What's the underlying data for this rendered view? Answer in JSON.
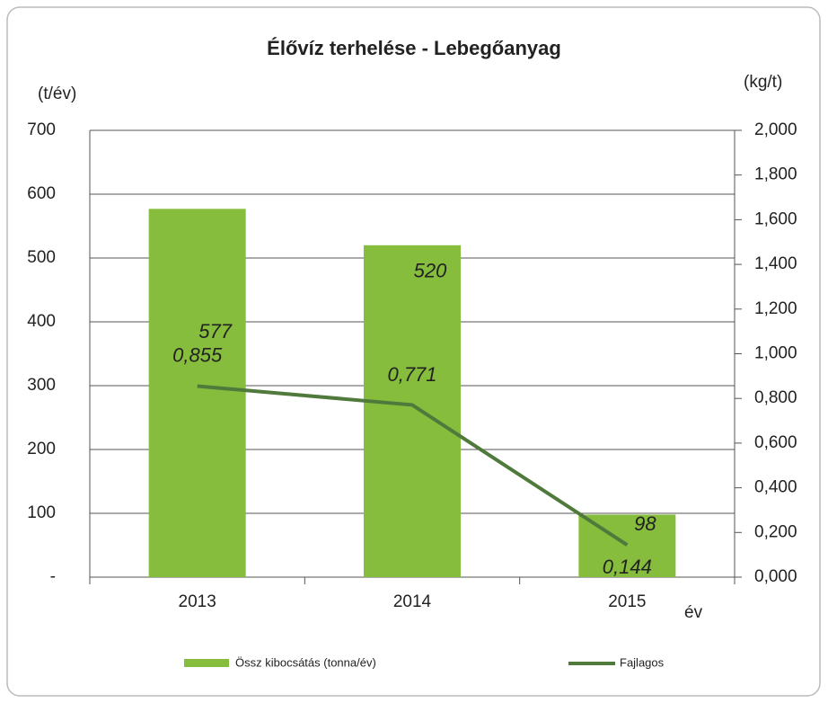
{
  "chart_data": {
    "type": "bar_line",
    "title": "Élővíz terhelése - Lebegőanyag",
    "y_label": "(t/év)",
    "y2_label": "(kg/t)",
    "x_label": "év",
    "categories": [
      "2013",
      "2014",
      "2015"
    ],
    "series": [
      {
        "name": "Össz kibocsátás (tonna/év)",
        "type": "bar",
        "color": "#86bd3c",
        "values": [
          577,
          520,
          98
        ]
      },
      {
        "name": "Fajlagos",
        "type": "line",
        "axis": "y2",
        "color": "#4f7a3c",
        "values": [
          0.855,
          0.771,
          0.144
        ],
        "value_labels": [
          "0,855",
          "0,771",
          "0,144"
        ]
      }
    ],
    "ylim": [
      0,
      700
    ],
    "yticks": [
      {
        "value": 0,
        "label": "-"
      },
      100,
      200,
      300,
      400,
      500,
      600,
      700
    ],
    "y2lim": [
      0,
      2
    ],
    "y2ticks": [
      {
        "value": 0,
        "label": "0,000"
      },
      {
        "value": 0.2,
        "label": "0,200"
      },
      {
        "value": 0.4,
        "label": "0,400"
      },
      {
        "value": 0.6,
        "label": "0,600"
      },
      {
        "value": 0.8,
        "label": "0,800"
      },
      {
        "value": 1,
        "label": "1,000"
      },
      {
        "value": 1.2,
        "label": "1,200"
      },
      {
        "value": 1.4,
        "label": "1,400"
      },
      {
        "value": 1.6,
        "label": "1,600"
      },
      {
        "value": 1.8,
        "label": "1,800"
      },
      {
        "value": 2,
        "label": "2,000"
      }
    ],
    "grid": true,
    "legend": "bottom"
  }
}
